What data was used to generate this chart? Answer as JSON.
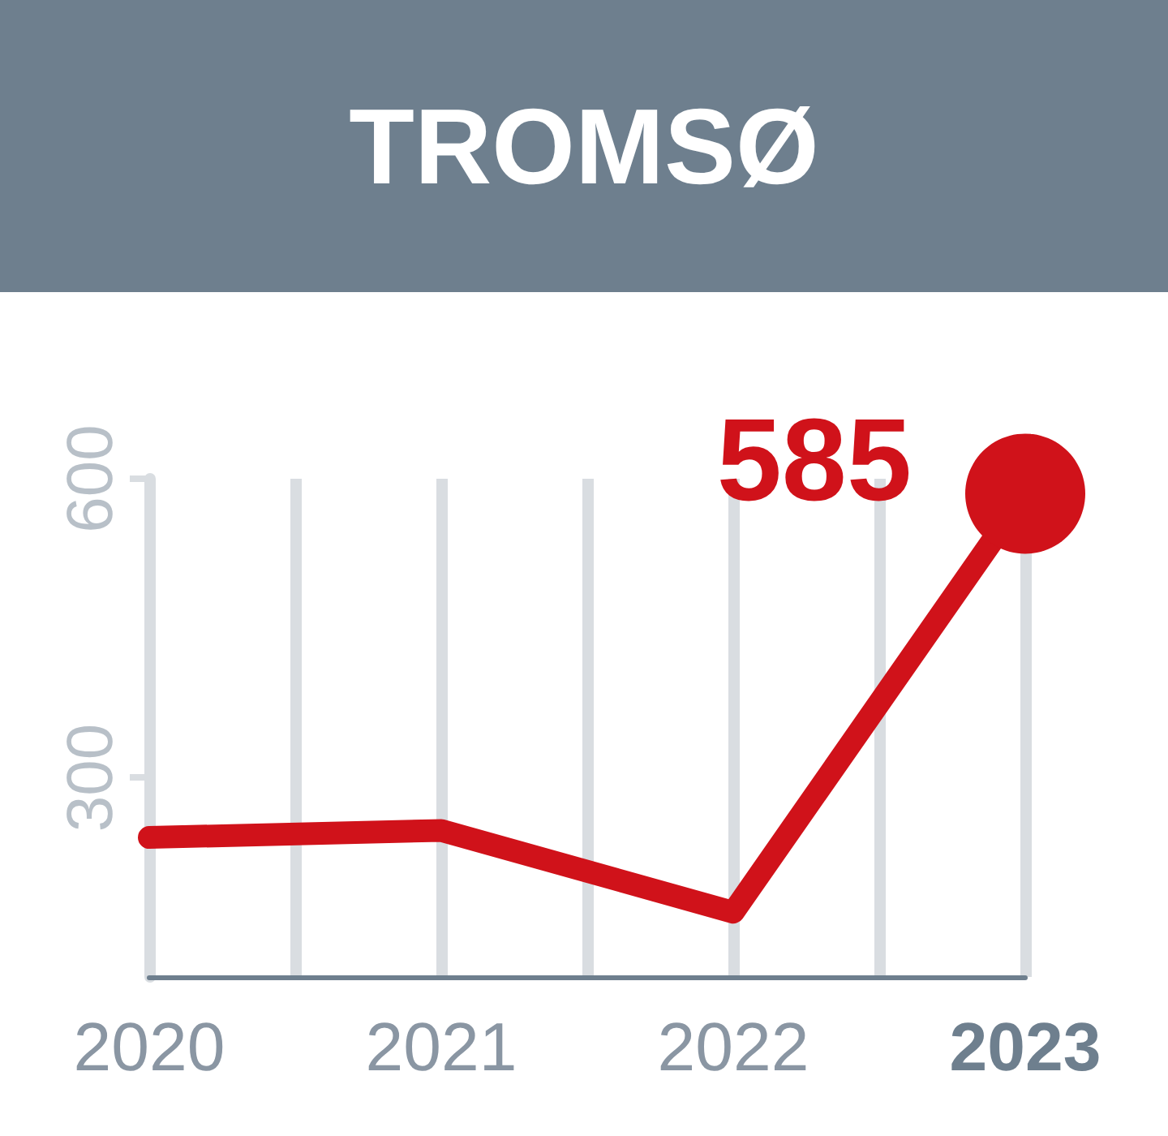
{
  "chart_data": {
    "type": "line",
    "title": "TROMSØ",
    "x": [
      2020,
      2021,
      2022,
      2023
    ],
    "series": [
      {
        "color": "#d0121a",
        "values": [
          240,
          247,
          165,
          585
        ],
        "marker": "none"
      },
      {
        "type": "scatter",
        "color": "#d0121a",
        "x": [
          2023
        ],
        "values": [
          585
        ],
        "marker": "circle"
      }
    ],
    "xlim": [
      2020,
      2023
    ],
    "xticks": [
      2020,
      {
        "value": 2020.5,
        "label": null
      },
      2021,
      {
        "value": 2021.5,
        "label": null
      },
      2022,
      {
        "value": 2022.5,
        "label": null
      },
      2023
    ],
    "ylim": [
      100,
      600
    ],
    "yticks": [
      300,
      600
    ],
    "grid": "x",
    "line_style": "solid",
    "annotations": [
      {
        "text": "585",
        "x": 2023,
        "y": 585
      }
    ]
  }
}
